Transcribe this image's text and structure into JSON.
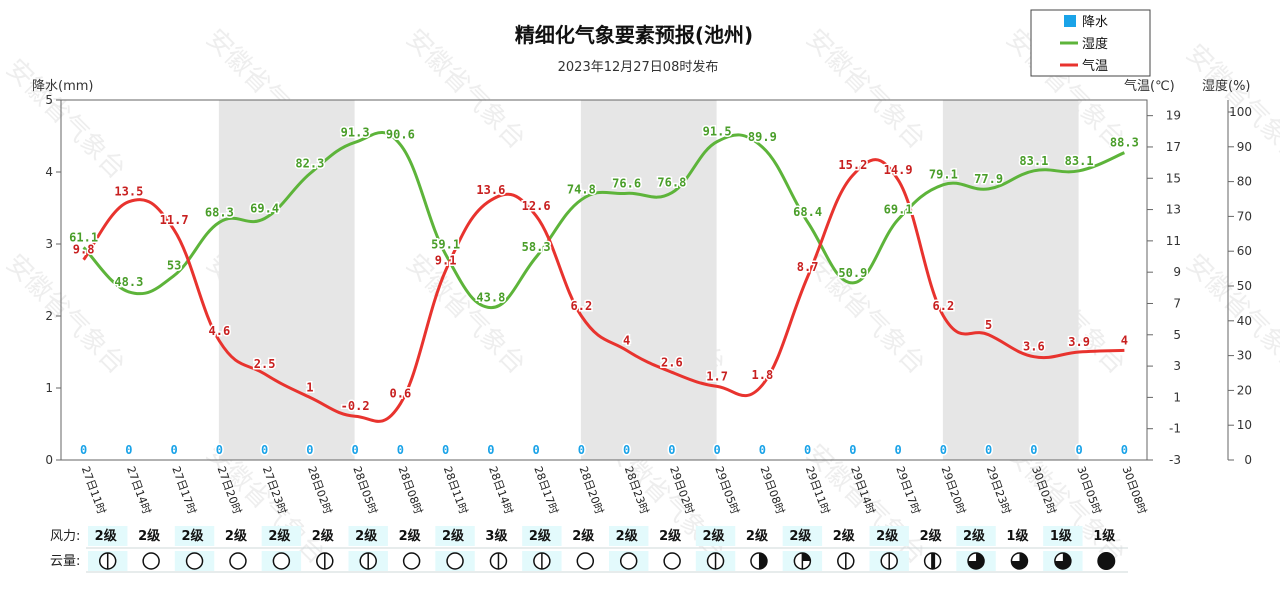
{
  "chart_data": {
    "type": "line",
    "title": "精细化气象要素预报(池州)",
    "subtitle": "2023年12月27日08时发布",
    "watermark": "安徽省气象台",
    "y_axes": {
      "precip": {
        "label": "降水(mm)",
        "range": [
          0,
          5
        ],
        "ticks": [
          0,
          1,
          2,
          3,
          4,
          5
        ]
      },
      "temp": {
        "label": "气温(℃)",
        "range": [
          -3,
          20
        ],
        "ticks": [
          -3,
          -1,
          1,
          3,
          5,
          7,
          9,
          11,
          13,
          15,
          17,
          19
        ]
      },
      "humidity": {
        "label": "湿度(%)",
        "range": [
          0,
          100
        ],
        "ticks": [
          0,
          10,
          20,
          30,
          40,
          50,
          60,
          70,
          80,
          90,
          100
        ]
      }
    },
    "categories": [
      "27日11时",
      "27日14时",
      "27日17时",
      "27日20时",
      "27日23时",
      "28日02时",
      "28日05时",
      "28日08时",
      "28日11时",
      "28日14时",
      "28日17时",
      "28日20时",
      "28日23时",
      "29日02时",
      "29日05时",
      "29日08时",
      "29日11时",
      "29日14时",
      "29日17时",
      "29日20时",
      "29日23时",
      "30日02时",
      "30日05时",
      "30日08时"
    ],
    "series": [
      {
        "name": "降水",
        "type": "bar",
        "color": "#1aa3e8",
        "values": [
          0,
          0,
          0,
          0,
          0,
          0,
          0,
          0,
          0,
          0,
          0,
          0,
          0,
          0,
          0,
          0,
          0,
          0,
          0,
          0,
          0,
          0,
          0,
          0
        ]
      },
      {
        "name": "湿度",
        "type": "line",
        "color": "#5db43a",
        "values": [
          61.1,
          48.3,
          53,
          68.3,
          69.4,
          82.3,
          91.3,
          90.6,
          59.1,
          43.8,
          58.3,
          74.8,
          76.6,
          76.8,
          91.5,
          89.9,
          68.4,
          50.9,
          69.1,
          79.1,
          77.9,
          83.1,
          83.1,
          88.3
        ]
      },
      {
        "name": "气温",
        "type": "line",
        "color": "#e8332e",
        "values": [
          9.8,
          13.5,
          11.7,
          4.6,
          2.5,
          1,
          -0.2,
          0.6,
          9.1,
          13.6,
          12.6,
          6.2,
          4,
          2.6,
          1.7,
          1.8,
          8.7,
          15.2,
          14.9,
          6.2,
          5,
          3.6,
          3.9,
          4
        ]
      }
    ],
    "legend_position": "top-right",
    "shaded_bands": [
      [
        3,
        6
      ],
      [
        11,
        14
      ],
      [
        19,
        22
      ]
    ],
    "wind_label": "风力:",
    "wind": [
      "2级",
      "2级",
      "2级",
      "2级",
      "2级",
      "2级",
      "2级",
      "2级",
      "2级",
      "3级",
      "2级",
      "2级",
      "2级",
      "2级",
      "2级",
      "2级",
      "2级",
      "2级",
      "2级",
      "2级",
      "2级",
      "1级",
      "1级",
      "1级"
    ],
    "cloud_label": "云量:",
    "cloud": [
      "partly",
      "clear",
      "clear",
      "clear",
      "clear",
      "partly",
      "partly",
      "clear",
      "clear",
      "partly",
      "partly",
      "clear",
      "clear",
      "clear",
      "partly",
      "half",
      "quarter",
      "partly",
      "partly",
      "mostly",
      "three-quarter",
      "three-quarter",
      "three-quarter",
      "overcast"
    ]
  }
}
